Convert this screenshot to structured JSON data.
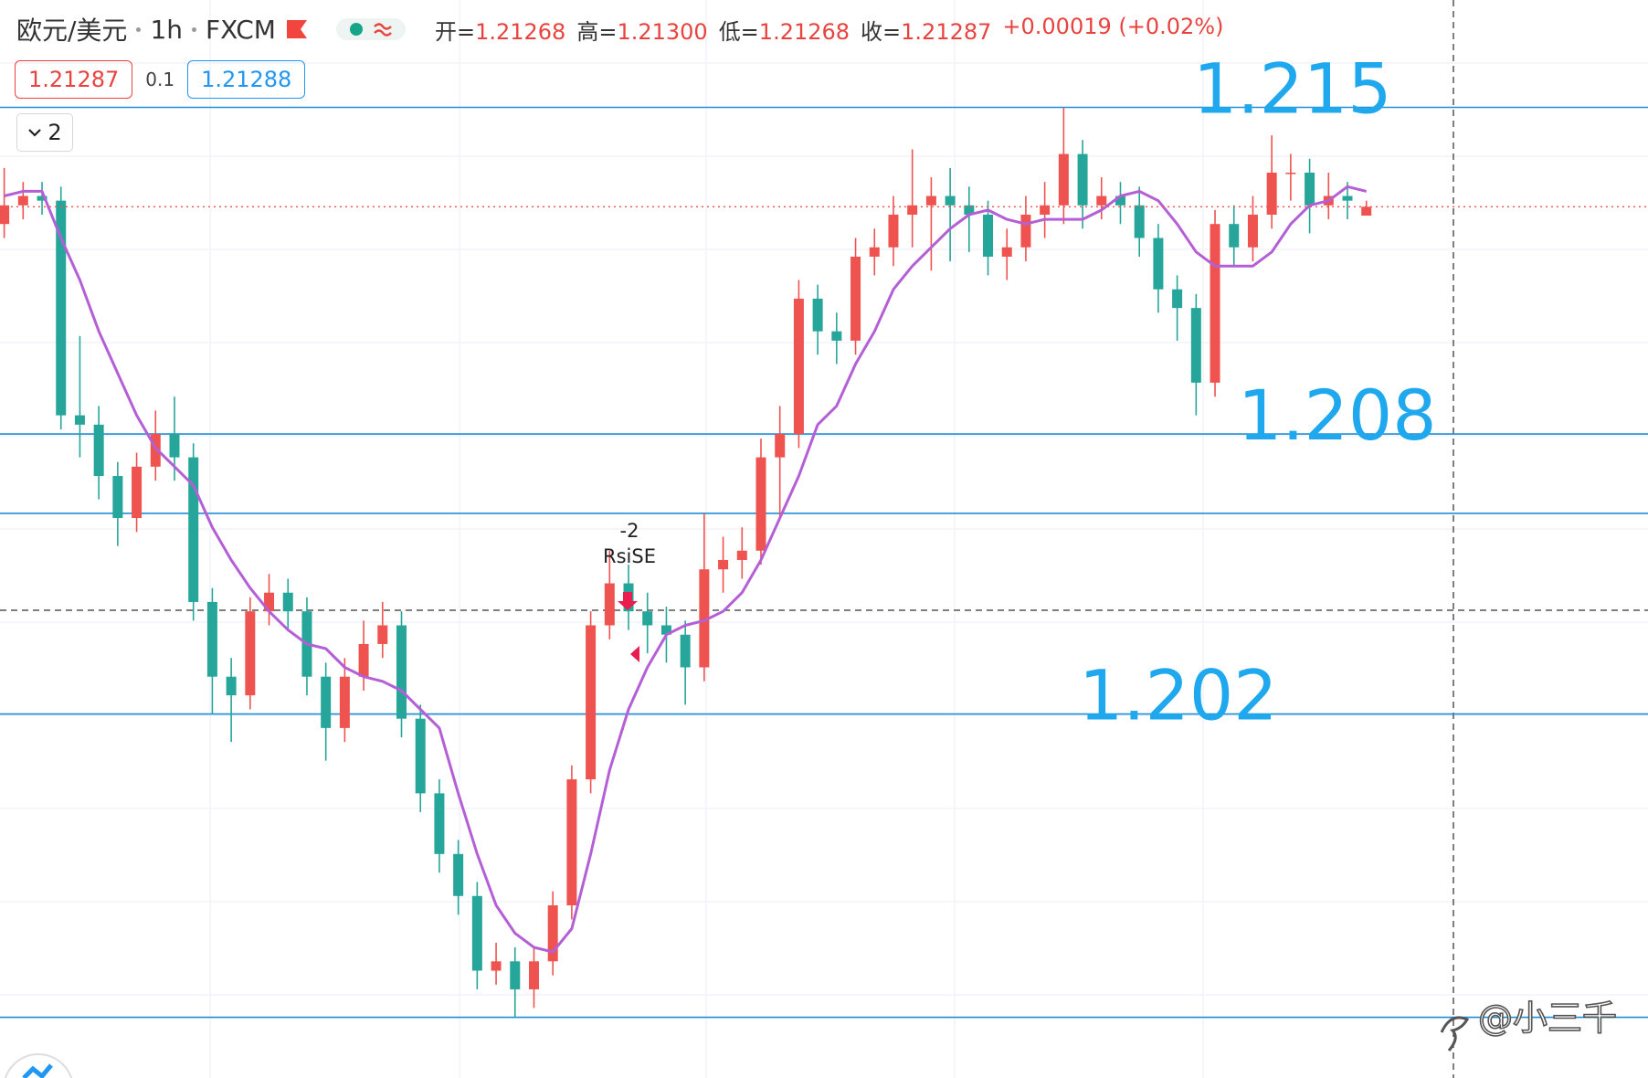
{
  "header": {
    "symbol": "欧元/美元",
    "interval": "1h",
    "exchange": "FXCM",
    "ohlc": [
      {
        "label": "开=",
        "value": "1.21268"
      },
      {
        "label": "高=",
        "value": "1.21300"
      },
      {
        "label": "低=",
        "value": "1.21268"
      },
      {
        "label": "收=",
        "value": "1.21287"
      }
    ],
    "change": "+0.00019 (+0.02%)"
  },
  "order_panel": {
    "sell": "1.21287",
    "spread": "0.1",
    "buy": "1.21288"
  },
  "collapse_count": "2",
  "watermark": "@小三千",
  "chart_data": {
    "type": "candlestick",
    "up_color": "#ef5350",
    "down_color": "#26a69a",
    "ylim": [
      1.1942,
      1.2173
    ],
    "open": [
      1.2125,
      1.2129,
      1.2131,
      1.213,
      1.2084,
      1.2082,
      1.2071,
      1.2062,
      1.2073,
      1.208,
      1.2075,
      1.2044,
      1.2028,
      1.2024,
      1.2042,
      1.2046,
      1.2042,
      1.2028,
      1.2017,
      1.2028,
      1.2035,
      1.2039,
      1.2019,
      1.2003,
      1.199,
      1.1981,
      1.1965,
      1.1967,
      1.1961,
      1.1967,
      1.1979,
      1.2006,
      1.2039,
      1.2048,
      1.2042,
      1.2039,
      1.2037,
      1.203,
      1.2051,
      1.2053,
      1.2055,
      1.2075,
      1.208,
      1.2109,
      1.2102,
      1.21,
      1.2118,
      1.212,
      1.2127,
      1.2129,
      1.2131,
      1.2129,
      1.2127,
      1.2118,
      1.212,
      1.2127,
      1.2129,
      1.214,
      1.2129,
      1.2131,
      1.2129,
      1.2122,
      1.2111,
      1.2107,
      1.2091,
      1.2125,
      1.212,
      1.2127,
      1.2136,
      1.2136,
      1.2129,
      1.2131,
      1.21268
    ],
    "high": [
      1.2137,
      1.2134,
      1.2134,
      1.2133,
      1.2101,
      1.2086,
      1.2074,
      1.2076,
      1.2085,
      1.2088,
      1.2078,
      1.2047,
      1.2032,
      1.2045,
      1.205,
      1.2049,
      1.2045,
      1.2031,
      1.2032,
      1.204,
      1.2044,
      1.2042,
      1.2022,
      1.2006,
      1.1993,
      1.1984,
      1.1971,
      1.197,
      1.197,
      1.1982,
      1.2009,
      1.2042,
      1.2055,
      1.2052,
      1.2046,
      1.2043,
      1.204,
      1.2063,
      1.2058,
      1.206,
      1.2079,
      1.2086,
      1.2113,
      1.2112,
      1.2106,
      1.2122,
      1.2124,
      1.2131,
      1.2141,
      1.2135,
      1.2137,
      1.2133,
      1.213,
      1.2124,
      1.2131,
      1.2134,
      1.215,
      1.2143,
      1.2135,
      1.2134,
      1.2133,
      1.2125,
      1.2114,
      1.211,
      1.2128,
      1.2129,
      1.2131,
      1.2144,
      1.214,
      1.2139,
      1.2136,
      1.2134,
      1.213
    ],
    "low": [
      1.2122,
      1.2126,
      1.2127,
      1.2081,
      1.2075,
      1.2066,
      1.2056,
      1.2059,
      1.207,
      1.207,
      1.204,
      1.202,
      1.2014,
      1.2021,
      1.2039,
      1.2038,
      1.2024,
      1.201,
      1.2014,
      1.2025,
      1.2032,
      1.2015,
      1.1999,
      1.1986,
      1.1977,
      1.1961,
      1.1962,
      1.1955,
      1.1957,
      1.1964,
      1.1976,
      1.2003,
      1.2036,
      1.2038,
      1.2033,
      1.2031,
      1.2022,
      1.2027,
      1.2046,
      1.2049,
      1.2052,
      1.2062,
      1.2077,
      1.2097,
      1.2095,
      1.2097,
      1.2114,
      1.2116,
      1.212,
      1.2115,
      1.2117,
      1.2119,
      1.2114,
      1.2113,
      1.2117,
      1.2122,
      1.2125,
      1.2124,
      1.2126,
      1.2125,
      1.2118,
      1.2106,
      1.21,
      1.2084,
      1.2088,
      1.2116,
      1.2117,
      1.2124,
      1.213,
      1.2123,
      1.2126,
      1.2126,
      1.21268
    ],
    "close": [
      1.2129,
      1.2131,
      1.213,
      1.2084,
      1.2082,
      1.2071,
      1.2062,
      1.2073,
      1.208,
      1.2075,
      1.2044,
      1.2028,
      1.2024,
      1.2042,
      1.2046,
      1.2042,
      1.2028,
      1.2017,
      1.2028,
      1.2035,
      1.2039,
      1.2019,
      1.2003,
      1.199,
      1.1981,
      1.1965,
      1.1967,
      1.1961,
      1.1967,
      1.1979,
      1.2006,
      1.2039,
      1.2048,
      1.2042,
      1.2039,
      1.2037,
      1.203,
      1.2051,
      1.2053,
      1.2055,
      1.2075,
      1.208,
      1.2109,
      1.2102,
      1.21,
      1.2118,
      1.212,
      1.2127,
      1.2129,
      1.2131,
      1.2129,
      1.2127,
      1.2118,
      1.212,
      1.2127,
      1.2129,
      1.214,
      1.2129,
      1.2131,
      1.2129,
      1.2122,
      1.2111,
      1.2107,
      1.2091,
      1.2125,
      1.212,
      1.2127,
      1.2136,
      1.2136,
      1.2129,
      1.2131,
      1.213,
      1.21287
    ],
    "ma": {
      "color": "#b45fd6",
      "values": [
        1.2131,
        1.2132,
        1.2132,
        1.2122,
        1.2113,
        1.2102,
        1.2093,
        1.2084,
        1.2077,
        1.2073,
        1.2069,
        1.206,
        1.2053,
        1.2047,
        1.2042,
        1.2038,
        1.2035,
        1.2034,
        1.203,
        1.2028,
        1.2027,
        1.2025,
        1.2021,
        1.2017,
        1.2003,
        1.199,
        1.1979,
        1.1973,
        1.197,
        1.1969,
        1.1974,
        1.199,
        1.2008,
        1.2021,
        1.203,
        1.2037,
        1.2039,
        1.204,
        1.2042,
        1.2046,
        1.2053,
        1.2062,
        1.2071,
        1.2082,
        1.2086,
        1.2095,
        1.2102,
        1.2111,
        1.2116,
        1.212,
        1.2124,
        1.2127,
        1.2128,
        1.2126,
        1.2125,
        1.2126,
        1.2126,
        1.2126,
        1.2128,
        1.2131,
        1.2132,
        1.213,
        1.2125,
        1.2119,
        1.2116,
        1.2116,
        1.2116,
        1.2119,
        1.2125,
        1.2129,
        1.213,
        1.2133,
        1.2132
      ]
    },
    "last_price_line": true,
    "levels": {
      "color": "#1e8ed6",
      "label_color": "#1fa8ee",
      "labeled": [
        1.215,
        1.208,
        1.202
      ],
      "unlabeled": [
        1.2063,
        1.1955
      ]
    },
    "annotations": [
      "-2",
      "RsiSE"
    ],
    "grid": true
  }
}
